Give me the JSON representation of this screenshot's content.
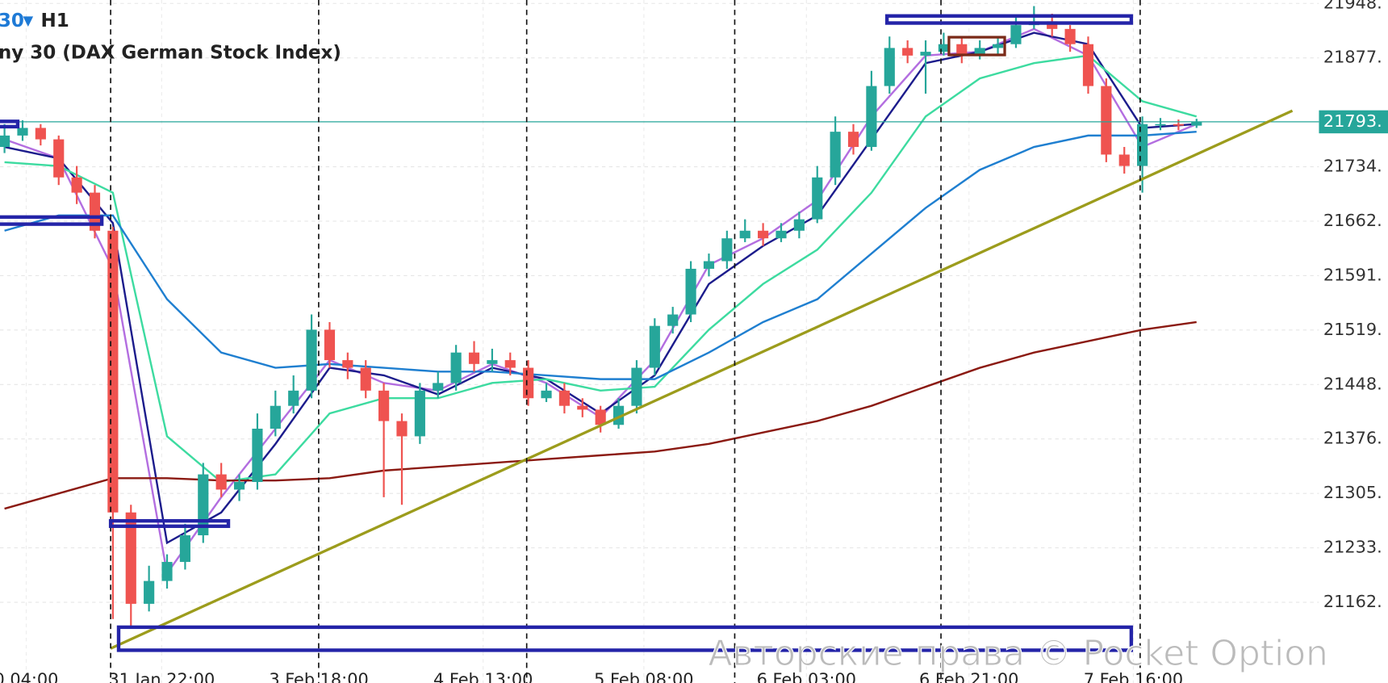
{
  "header": {
    "symbol": "30",
    "timeframe": "H1",
    "instrument": "ny 30 (DAX German Stock Index)"
  },
  "watermark": "Авторские права © Pocket Option",
  "chart_data": {
    "type": "candlestick",
    "grid": true,
    "up_color": "#26a69a",
    "down_color": "#ef5350",
    "xlim": [
      -0.25,
      76.6
    ],
    "ylim": [
      21056,
      21953
    ],
    "yticks": [
      {
        "value": 21948.5,
        "label": "21948."
      },
      {
        "value": 21877,
        "label": "21877."
      },
      {
        "value": 21734,
        "label": "21734."
      },
      {
        "value": 21662.5,
        "label": "21662."
      },
      {
        "value": 21591,
        "label": "21591."
      },
      {
        "value": 21519.5,
        "label": "21519."
      },
      {
        "value": 21448,
        "label": "21448."
      },
      {
        "value": 21376.5,
        "label": "21376."
      },
      {
        "value": 21305,
        "label": "21305."
      },
      {
        "value": 21233.5,
        "label": "21233."
      },
      {
        "value": 21162,
        "label": "21162."
      }
    ],
    "xticks": [
      {
        "value": 1.2,
        "label": "0 04:00"
      },
      {
        "value": 8.7,
        "label": "31 Jan 22:00"
      },
      {
        "value": 17.4,
        "label": "3 Feb 18:00"
      },
      {
        "value": 26.5,
        "label": "4 Feb 13:00"
      },
      {
        "value": 35.4,
        "label": "5 Feb 08:00"
      },
      {
        "value": 44.4,
        "label": "6 Feb 03:00"
      },
      {
        "value": 53.4,
        "label": "6 Feb 21:00"
      },
      {
        "value": 62.5,
        "label": "7 Feb 16:00"
      }
    ],
    "last_price": {
      "value": 21793,
      "label": "21793.",
      "color": "#26a69a"
    },
    "x": [
      0,
      1,
      2,
      3,
      4,
      5,
      6,
      7,
      8,
      9,
      10,
      11,
      12,
      13,
      14,
      15,
      16,
      17,
      18,
      19,
      20,
      21,
      22,
      23,
      24,
      25,
      26,
      27,
      28,
      29,
      30,
      31,
      32,
      33,
      34,
      35,
      36,
      37,
      38,
      39,
      40,
      41,
      42,
      43,
      44,
      45,
      46,
      47,
      48,
      49,
      50,
      51,
      52,
      53,
      54,
      55,
      56,
      57,
      58,
      59,
      60,
      61,
      62,
      63,
      64,
      65,
      66
    ],
    "open": [
      21760,
      21775,
      21785,
      21770,
      21720,
      21700,
      21650,
      21280,
      21160,
      21190,
      21215,
      21250,
      21330,
      21310,
      21320,
      21390,
      21420,
      21440,
      21520,
      21480,
      21470,
      21440,
      21400,
      21380,
      21440,
      21450,
      21490,
      21475,
      21480,
      21470,
      21430,
      21440,
      21420,
      21415,
      21395,
      21420,
      21470,
      21525,
      21540,
      21600,
      21610,
      21640,
      21650,
      21640,
      21650,
      21665,
      21720,
      21780,
      21760,
      21840,
      21890,
      21880,
      21885,
      21895,
      21880,
      21890,
      21895,
      21920,
      21925,
      21915,
      21895,
      21840,
      21750,
      21735,
      21790,
      21790,
      21788
    ],
    "high": [
      21790,
      21795,
      21790,
      21775,
      21735,
      21710,
      21655,
      21290,
      21210,
      21225,
      21265,
      21345,
      21345,
      21330,
      21410,
      21440,
      21460,
      21540,
      21530,
      21490,
      21480,
      21450,
      21410,
      21450,
      21465,
      21500,
      21505,
      21495,
      21490,
      21480,
      21450,
      21450,
      21430,
      21420,
      21430,
      21480,
      21535,
      21550,
      21610,
      21620,
      21650,
      21665,
      21660,
      21660,
      21675,
      21735,
      21800,
      21790,
      21860,
      21905,
      21900,
      21900,
      21910,
      21905,
      21900,
      21905,
      21930,
      21945,
      21935,
      21920,
      21905,
      21850,
      21760,
      21800,
      21798,
      21796,
      21797
    ],
    "low": [
      21752,
      21768,
      21762,
      21710,
      21685,
      21640,
      21140,
      21130,
      21150,
      21180,
      21205,
      21240,
      21300,
      21295,
      21310,
      21380,
      21410,
      21430,
      21470,
      21455,
      21430,
      21300,
      21290,
      21370,
      21430,
      21440,
      21465,
      21465,
      21460,
      21420,
      21425,
      21410,
      21405,
      21385,
      21390,
      21410,
      21460,
      21515,
      21530,
      21590,
      21600,
      21635,
      21630,
      21635,
      21640,
      21660,
      21710,
      21750,
      21755,
      21830,
      21870,
      21830,
      21880,
      21870,
      21875,
      21880,
      21890,
      21915,
      21905,
      21885,
      21830,
      21740,
      21725,
      21700,
      21782,
      21782,
      21785
    ],
    "close": [
      21775,
      21785,
      21770,
      21720,
      21700,
      21650,
      21280,
      21160,
      21190,
      21215,
      21250,
      21330,
      21310,
      21320,
      21390,
      21420,
      21440,
      21520,
      21480,
      21470,
      21440,
      21400,
      21380,
      21440,
      21450,
      21490,
      21475,
      21480,
      21470,
      21430,
      21440,
      21420,
      21415,
      21395,
      21420,
      21470,
      21525,
      21540,
      21600,
      21610,
      21640,
      21650,
      21640,
      21650,
      21665,
      21720,
      21780,
      21760,
      21840,
      21890,
      21880,
      21885,
      21895,
      21880,
      21890,
      21895,
      21920,
      21925,
      21915,
      21895,
      21840,
      21750,
      21735,
      21790,
      21790,
      21788,
      21793
    ],
    "series": [
      {
        "color": "#b36ee0",
        "x": [
          0,
          3,
          6,
          9,
          12,
          15,
          18,
          21,
          24,
          27,
          30,
          33,
          36,
          39,
          42,
          45,
          48,
          51,
          54,
          57,
          60,
          63,
          66
        ],
        "values": [
          21770,
          21745,
          21600,
          21200,
          21300,
          21390,
          21480,
          21450,
          21440,
          21475,
          21450,
          21405,
          21480,
          21605,
          21640,
          21690,
          21800,
          21880,
          21885,
          21915,
          21880,
          21760,
          21790
        ]
      },
      {
        "color": "#1c1c8c",
        "x": [
          0,
          3,
          6,
          9,
          12,
          15,
          18,
          21,
          24,
          27,
          30,
          33,
          36,
          39,
          42,
          45,
          48,
          51,
          54,
          57,
          60,
          63,
          66
        ],
        "values": [
          21760,
          21745,
          21660,
          21240,
          21280,
          21370,
          21470,
          21460,
          21435,
          21470,
          21455,
          21410,
          21460,
          21580,
          21630,
          21670,
          21770,
          21870,
          21885,
          21910,
          21895,
          21785,
          21790
        ]
      },
      {
        "color": "#3ddba0",
        "x": [
          0,
          3,
          6,
          9,
          12,
          15,
          18,
          21,
          24,
          27,
          30,
          33,
          36,
          39,
          42,
          45,
          48,
          51,
          54,
          57,
          60,
          63,
          66
        ],
        "values": [
          21740,
          21735,
          21700,
          21380,
          21320,
          21330,
          21410,
          21430,
          21430,
          21450,
          21455,
          21440,
          21445,
          21520,
          21580,
          21625,
          21700,
          21800,
          21850,
          21870,
          21880,
          21820,
          21800
        ]
      },
      {
        "color": "#1f7fd0",
        "x": [
          0,
          3,
          6,
          9,
          12,
          15,
          18,
          21,
          24,
          27,
          30,
          33,
          36,
          39,
          42,
          45,
          48,
          51,
          54,
          57,
          60,
          63,
          66
        ],
        "values": [
          21650,
          21670,
          21670,
          21560,
          21490,
          21470,
          21475,
          21470,
          21465,
          21465,
          21460,
          21455,
          21455,
          21490,
          21530,
          21560,
          21620,
          21680,
          21730,
          21760,
          21775,
          21775,
          21780
        ]
      },
      {
        "color": "#8b1a12",
        "x": [
          0,
          3,
          6,
          9,
          12,
          15,
          18,
          21,
          24,
          27,
          30,
          33,
          36,
          39,
          42,
          45,
          48,
          51,
          54,
          57,
          60,
          63,
          66
        ],
        "values": [
          21285,
          21305,
          21325,
          21325,
          21322,
          21322,
          21325,
          21335,
          21340,
          21345,
          21350,
          21355,
          21360,
          21370,
          21385,
          21400,
          21420,
          21445,
          21470,
          21490,
          21505,
          21520,
          21530
        ]
      }
    ]
  }
}
